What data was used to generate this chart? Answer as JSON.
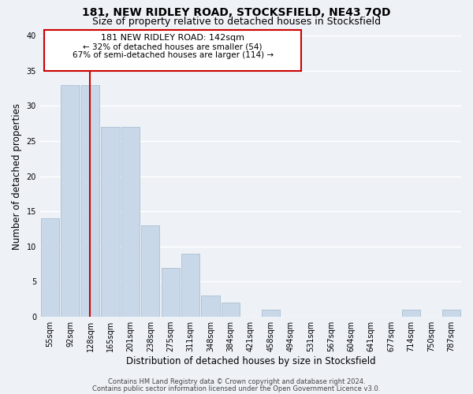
{
  "title": "181, NEW RIDLEY ROAD, STOCKSFIELD, NE43 7QD",
  "subtitle": "Size of property relative to detached houses in Stocksfield",
  "xlabel": "Distribution of detached houses by size in Stocksfield",
  "ylabel": "Number of detached properties",
  "bar_color": "#c8d8e8",
  "bar_edge_color": "#a0b8cc",
  "vline_color": "#cc0000",
  "vline_x": 2,
  "bins": [
    "55sqm",
    "92sqm",
    "128sqm",
    "165sqm",
    "201sqm",
    "238sqm",
    "275sqm",
    "311sqm",
    "348sqm",
    "384sqm",
    "421sqm",
    "458sqm",
    "494sqm",
    "531sqm",
    "567sqm",
    "604sqm",
    "641sqm",
    "677sqm",
    "714sqm",
    "750sqm",
    "787sqm"
  ],
  "values": [
    14,
    33,
    33,
    27,
    27,
    13,
    7,
    9,
    3,
    2,
    0,
    1,
    0,
    0,
    0,
    0,
    0,
    0,
    1,
    0,
    1
  ],
  "ylim": [
    0,
    40
  ],
  "yticks": [
    0,
    5,
    10,
    15,
    20,
    25,
    30,
    35,
    40
  ],
  "annotation_title": "181 NEW RIDLEY ROAD: 142sqm",
  "annotation_line1": "← 32% of detached houses are smaller (54)",
  "annotation_line2": "67% of semi-detached houses are larger (114) →",
  "footer1": "Contains HM Land Registry data © Crown copyright and database right 2024.",
  "footer2": "Contains public sector information licensed under the Open Government Licence v3.0.",
  "background_color": "#eef2f7",
  "grid_color": "#ffffff",
  "title_fontsize": 10,
  "subtitle_fontsize": 9,
  "axis_label_fontsize": 8.5,
  "tick_fontsize": 7,
  "footer_fontsize": 6,
  "ann_title_fontsize": 8,
  "ann_text_fontsize": 7.5
}
